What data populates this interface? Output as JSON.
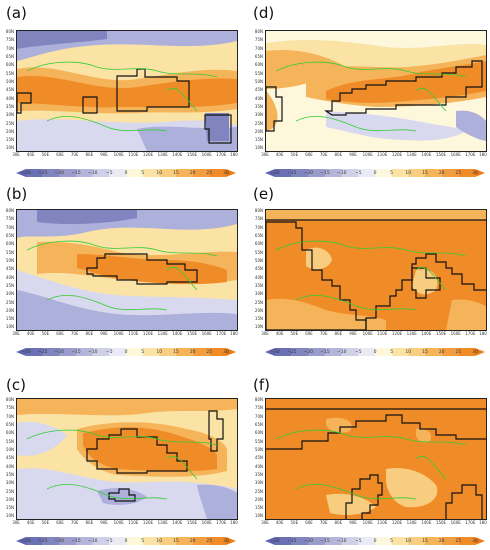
{
  "panels": [
    {
      "id": "a",
      "letter": "(a)"
    },
    {
      "id": "b",
      "letter": "(b)"
    },
    {
      "id": "c",
      "letter": "(c)"
    },
    {
      "id": "d",
      "letter": "(d)"
    },
    {
      "id": "e",
      "letter": "(e)"
    },
    {
      "id": "f",
      "letter": "(f)"
    }
  ],
  "lat_labels": [
    "80N",
    "75N",
    "70N",
    "65N",
    "60N",
    "55N",
    "50N",
    "45N",
    "40N",
    "35N",
    "30N",
    "25N",
    "20N",
    "15N",
    "10N"
  ],
  "lon_labels": [
    "30E",
    "40E",
    "50E",
    "60E",
    "70E",
    "80E",
    "90E",
    "100E",
    "110E",
    "120E",
    "130E",
    "140E",
    "150E",
    "160E",
    "170E",
    "180"
  ],
  "colorbar_labels": [
    "−30",
    "−25",
    "−20",
    "−15",
    "−10",
    "−5",
    "0",
    "5",
    "10",
    "15",
    "20",
    "25",
    "30"
  ],
  "colors": {
    "strong_pos": "#f08c28",
    "mid_pos": "#f6b45a",
    "weak_pos": "#fbe3a6",
    "neutral": "#fdf7dc",
    "weak_neg": "#d8d8ee",
    "mid_neg": "#aeb0dc",
    "strong_neg": "#8085c0",
    "coast": "#33cc33",
    "contour": "#111111"
  }
}
